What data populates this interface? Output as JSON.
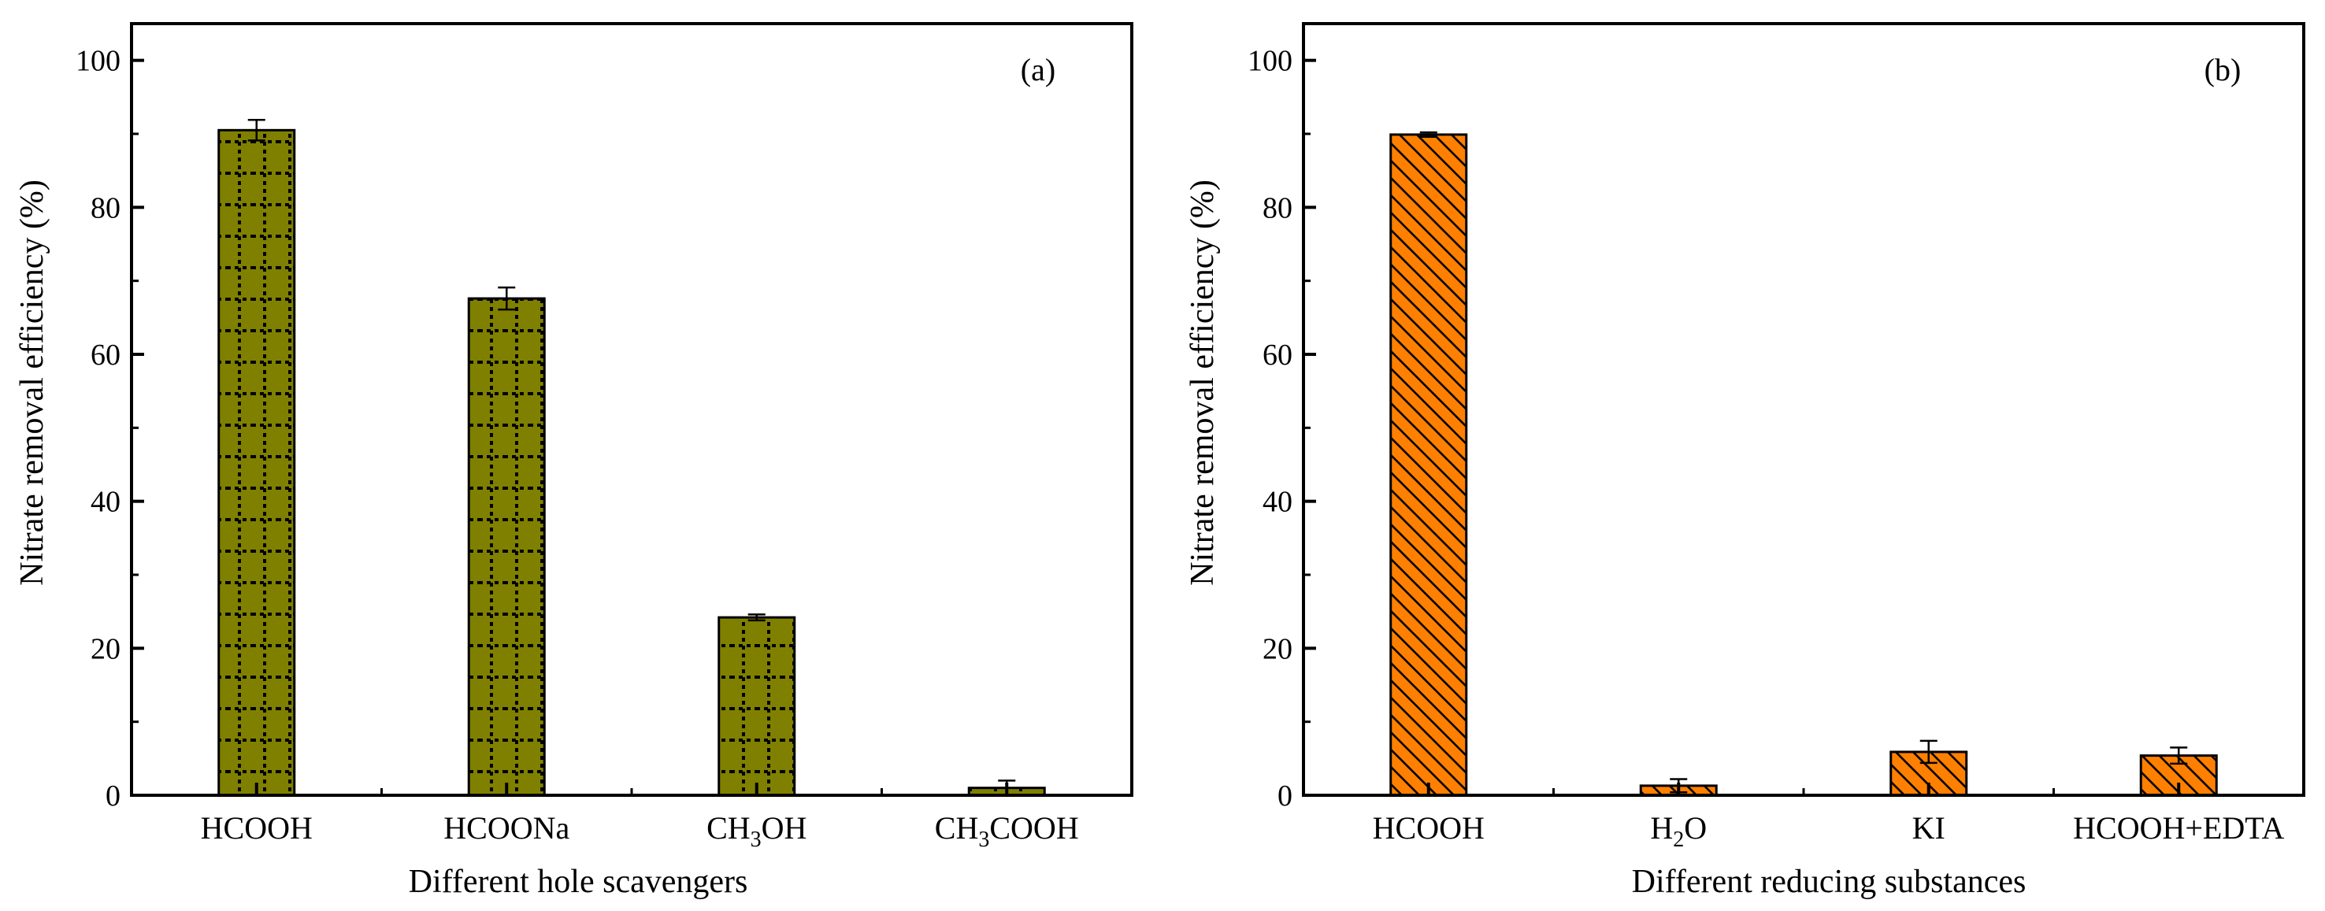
{
  "colors": {
    "olive_fill": "#808000",
    "orange_fill": "#FF8000",
    "stroke": "#000000",
    "background": "#FFFFFF"
  },
  "chart_data": [
    {
      "type": "bar",
      "panel_tag": "(a)",
      "title": "",
      "xlabel": "Different hole scavengers",
      "ylabel": "Nitrate removal efficiency (%)",
      "ylim": [
        0,
        105
      ],
      "yticks": [
        0,
        20,
        40,
        60,
        80,
        100
      ],
      "grid": false,
      "legend": "none",
      "pattern": "dotted-grid",
      "categories": [
        {
          "base": "HCOOH",
          "sub": "",
          "rest": ""
        },
        {
          "base": "HCOONa",
          "sub": "",
          "rest": ""
        },
        {
          "base": "CH",
          "sub": "3",
          "rest": "OH"
        },
        {
          "base": "CH",
          "sub": "3",
          "rest": "COOH"
        }
      ],
      "values": [
        90.5,
        67.6,
        24.2,
        1.0
      ],
      "errors": [
        1.4,
        1.5,
        0.4,
        1.0
      ]
    },
    {
      "type": "bar",
      "panel_tag": "(b)",
      "title": "",
      "xlabel": "Different reducing substances",
      "ylabel": "Nitrate removal efficiency (%)",
      "ylim": [
        0,
        105
      ],
      "yticks": [
        0,
        20,
        40,
        60,
        80,
        100
      ],
      "grid": false,
      "legend": "none",
      "pattern": "diagonal-hatch",
      "categories": [
        {
          "base": "HCOOH",
          "sub": "",
          "rest": ""
        },
        {
          "base": "H",
          "sub": "2",
          "rest": "O"
        },
        {
          "base": "KI",
          "sub": "",
          "rest": ""
        },
        {
          "base": "HCOOH+EDTA",
          "sub": "",
          "rest": ""
        }
      ],
      "values": [
        89.9,
        1.3,
        5.9,
        5.4
      ],
      "errors": [
        0.3,
        0.9,
        1.5,
        1.1
      ]
    }
  ]
}
